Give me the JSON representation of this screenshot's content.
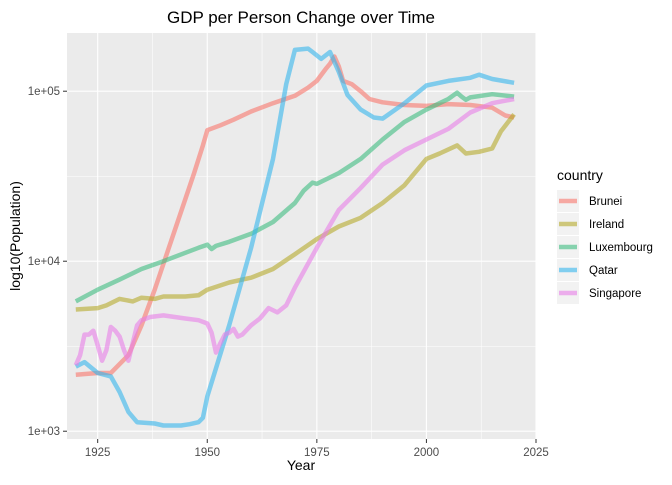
{
  "chart_data": {
    "type": "line",
    "title": "GDP per Person Change over Time",
    "xlabel": "Year",
    "ylabel": "log10(Population)",
    "xlim": [
      1918,
      2025
    ],
    "ylim": [
      900,
      220000
    ],
    "y_scale": "log10",
    "x_ticks": [
      1925,
      1950,
      1975,
      2000,
      2025
    ],
    "x_tick_labels": [
      "1925",
      "1950",
      "1975",
      "2000",
      "2025"
    ],
    "y_ticks": [
      1000,
      10000,
      100000
    ],
    "y_tick_labels": [
      "1e+03",
      "1e+04",
      "1e+05"
    ],
    "grid": true,
    "legend_title": "country",
    "legend_position": "right",
    "series": [
      {
        "name": "Brunei",
        "color": "#F8766D",
        "x": [
          1920,
          1925,
          1928,
          1932,
          1935,
          1938,
          1941,
          1944,
          1947,
          1949,
          1950,
          1953,
          1956,
          1960,
          1965,
          1970,
          1973,
          1975,
          1977,
          1978,
          1979,
          1980,
          1981,
          1983,
          1985,
          1987,
          1990,
          1995,
          2000,
          2005,
          2010,
          2015,
          2018,
          2020
        ],
        "values": [
          2150,
          2200,
          2200,
          2800,
          4200,
          6800,
          11500,
          19500,
          33000,
          48000,
          59000,
          63000,
          68000,
          76000,
          85000,
          94000,
          105000,
          115000,
          135000,
          145000,
          160000,
          140000,
          115000,
          110000,
          100000,
          90000,
          86000,
          83000,
          82000,
          84000,
          83000,
          80000,
          72000,
          70000
        ]
      },
      {
        "name": "Ireland",
        "color": "#B5AA2C",
        "x": [
          1920,
          1925,
          1927,
          1930,
          1933,
          1935,
          1938,
          1940,
          1945,
          1948,
          1950,
          1955,
          1958,
          1960,
          1965,
          1970,
          1975,
          1980,
          1985,
          1990,
          1995,
          2000,
          2003,
          2007,
          2009,
          2012,
          2015,
          2017,
          2020
        ],
        "values": [
          5200,
          5300,
          5500,
          6000,
          5800,
          6100,
          6000,
          6200,
          6200,
          6300,
          6800,
          7500,
          7800,
          8000,
          9000,
          11000,
          13500,
          16000,
          18000,
          22000,
          28000,
          40000,
          43000,
          48000,
          43000,
          44000,
          46000,
          58000,
          73000
        ]
      },
      {
        "name": "Luxembourg",
        "color": "#3DBD80",
        "x": [
          1920,
          1925,
          1930,
          1935,
          1940,
          1945,
          1948,
          1950,
          1951,
          1952,
          1955,
          1960,
          1965,
          1970,
          1972,
          1974,
          1975,
          1980,
          1985,
          1990,
          1995,
          2000,
          2003,
          2005,
          2007,
          2008,
          2009,
          2010,
          2015,
          2020
        ],
        "values": [
          5800,
          6800,
          7800,
          9000,
          10000,
          11200,
          12000,
          12500,
          11800,
          12300,
          13000,
          14500,
          17000,
          22000,
          26000,
          29000,
          28500,
          33000,
          40000,
          52000,
          66000,
          78000,
          85000,
          90000,
          98000,
          93000,
          89000,
          92000,
          96000,
          93000
        ]
      },
      {
        "name": "Qatar",
        "color": "#35B5EC",
        "x": [
          1920,
          1922,
          1925,
          1928,
          1930,
          1932,
          1934,
          1936,
          1938,
          1940,
          1942,
          1944,
          1946,
          1948,
          1949,
          1950,
          1955,
          1960,
          1965,
          1968,
          1970,
          1973,
          1974,
          1976,
          1978,
          1980,
          1982,
          1985,
          1988,
          1990,
          1995,
          2000,
          2005,
          2010,
          2012,
          2015,
          2020
        ],
        "values": [
          2400,
          2550,
          2200,
          2100,
          1700,
          1300,
          1130,
          1120,
          1110,
          1080,
          1080,
          1080,
          1100,
          1130,
          1200,
          1600,
          4200,
          12000,
          40000,
          110000,
          175000,
          178000,
          170000,
          155000,
          170000,
          130000,
          95000,
          78000,
          70000,
          69000,
          85000,
          108000,
          115000,
          120000,
          125000,
          118000,
          112000
        ]
      },
      {
        "name": "Singapore",
        "color": "#E77EE8",
        "x": [
          1920,
          1921,
          1922,
          1923,
          1924,
          1925,
          1926,
          1927,
          1928,
          1929,
          1930,
          1931,
          1932,
          1933,
          1934,
          1935,
          1937,
          1940,
          1945,
          1948,
          1950,
          1951,
          1952,
          1953,
          1954,
          1955,
          1956,
          1957,
          1958,
          1960,
          1962,
          1964,
          1966,
          1968,
          1970,
          1975,
          1980,
          1985,
          1990,
          1995,
          2000,
          2005,
          2010,
          2015,
          2020
        ],
        "values": [
          2450,
          2800,
          3700,
          3700,
          3900,
          3200,
          2600,
          3000,
          4100,
          3900,
          3600,
          3000,
          2600,
          3300,
          4200,
          4500,
          4700,
          4800,
          4600,
          4500,
          4300,
          3800,
          2900,
          3300,
          3700,
          3800,
          4000,
          3600,
          3700,
          4200,
          4600,
          5300,
          5000,
          5500,
          7000,
          12000,
          20000,
          27000,
          37000,
          45000,
          52000,
          60000,
          75000,
          85000,
          90000
        ]
      }
    ]
  }
}
